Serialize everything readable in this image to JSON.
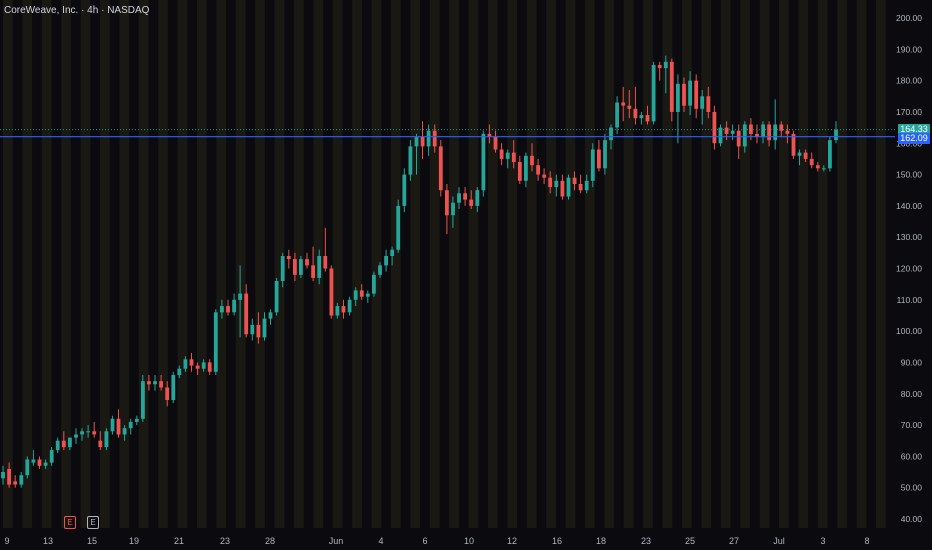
{
  "header": {
    "title": "CoreWeave, Inc. · 4h · NASDAQ"
  },
  "colors": {
    "up": "#26a69a",
    "down": "#ef5350",
    "line_blue": "#2962ff",
    "bg": "#0b0b0f",
    "session_band": "#1c1a14",
    "text": "#b2b5be"
  },
  "price_labels": {
    "current": "164.33",
    "level": "162.09"
  },
  "events": [
    {
      "label": "E",
      "color": "#ef5350"
    },
    {
      "label": "E",
      "color": "#b2b5be"
    }
  ],
  "chart_data": {
    "type": "candlestick",
    "timeframe": "4h",
    "ylim": [
      38,
      202
    ],
    "y_ticks": [
      "200.00",
      "190.00",
      "180.00",
      "170.00",
      "160.00",
      "150.00",
      "140.00",
      "130.00",
      "120.00",
      "110.00",
      "100.00",
      "90.00",
      "80.00",
      "70.00",
      "60.00",
      "50.00",
      "40.00"
    ],
    "x_ticks": [
      "9",
      "13",
      "15",
      "19",
      "21",
      "23",
      "28",
      "Jun",
      "4",
      "6",
      "10",
      "12",
      "16",
      "18",
      "23",
      "25",
      "27",
      "Jul",
      "3",
      "8"
    ],
    "horizontal_line": 162.09,
    "last_price": 164.33,
    "ohlc": [
      [
        53,
        57,
        51,
        55
      ],
      [
        56,
        58,
        50,
        51
      ],
      [
        52,
        54,
        50,
        51
      ],
      [
        51,
        55,
        50,
        54
      ],
      [
        54,
        60,
        53,
        59
      ],
      [
        58,
        62,
        57,
        59
      ],
      [
        59,
        60,
        56,
        57
      ],
      [
        57,
        59,
        56,
        58
      ],
      [
        58,
        63,
        57,
        62
      ],
      [
        62,
        66,
        61,
        65
      ],
      [
        65,
        68,
        62,
        63
      ],
      [
        63,
        66,
        62,
        66
      ],
      [
        66,
        69,
        64,
        67
      ],
      [
        67,
        69,
        65,
        68
      ],
      [
        68,
        70,
        66,
        68
      ],
      [
        68,
        71,
        66,
        67
      ],
      [
        65,
        68,
        62,
        63
      ],
      [
        63,
        69,
        62,
        68
      ],
      [
        68,
        73,
        67,
        72
      ],
      [
        72,
        75,
        66,
        67
      ],
      [
        67,
        70,
        65,
        69
      ],
      [
        69,
        72,
        67,
        71
      ],
      [
        71,
        73,
        70,
        72
      ],
      [
        72,
        86,
        71,
        84
      ],
      [
        84,
        86,
        81,
        83
      ],
      [
        83,
        86,
        81,
        84
      ],
      [
        84,
        86,
        81,
        82
      ],
      [
        82,
        84,
        76,
        78
      ],
      [
        78,
        87,
        77,
        86
      ],
      [
        86,
        89,
        85,
        88
      ],
      [
        88,
        92,
        87,
        91
      ],
      [
        91,
        93,
        87,
        89
      ],
      [
        89,
        90,
        86,
        88
      ],
      [
        88,
        91,
        87,
        90
      ],
      [
        90,
        91,
        86,
        87
      ],
      [
        87,
        107,
        86,
        106
      ],
      [
        106,
        110,
        104,
        108
      ],
      [
        108,
        110,
        105,
        106
      ],
      [
        106,
        112,
        105,
        110
      ],
      [
        110,
        121,
        98,
        112
      ],
      [
        112,
        115,
        98,
        99
      ],
      [
        99,
        104,
        97,
        102
      ],
      [
        102,
        106,
        96,
        98
      ],
      [
        98,
        106,
        97,
        104
      ],
      [
        104,
        107,
        102,
        106
      ],
      [
        106,
        117,
        105,
        116
      ],
      [
        116,
        125,
        114,
        124
      ],
      [
        124,
        126,
        120,
        123
      ],
      [
        123,
        125,
        116,
        118
      ],
      [
        118,
        124,
        117,
        123
      ],
      [
        123,
        125,
        120,
        121
      ],
      [
        121,
        127,
        116,
        117
      ],
      [
        117,
        126,
        115,
        124
      ],
      [
        124,
        133,
        119,
        120
      ],
      [
        120,
        121,
        104,
        105
      ],
      [
        105,
        109,
        104,
        108
      ],
      [
        108,
        110,
        104,
        106
      ],
      [
        106,
        111,
        105,
        110
      ],
      [
        110,
        114,
        108,
        113
      ],
      [
        113,
        115,
        110,
        111
      ],
      [
        111,
        113,
        109,
        112
      ],
      [
        112,
        119,
        111,
        118
      ],
      [
        118,
        122,
        117,
        121
      ],
      [
        121,
        126,
        119,
        124
      ],
      [
        124,
        127,
        121,
        126
      ],
      [
        126,
        142,
        125,
        140
      ],
      [
        140,
        152,
        138,
        150
      ],
      [
        150,
        161,
        148,
        159
      ],
      [
        159,
        163,
        150,
        162
      ],
      [
        162,
        167,
        155,
        159
      ],
      [
        159,
        166,
        156,
        164
      ],
      [
        164,
        166,
        157,
        159
      ],
      [
        159,
        161,
        143,
        145
      ],
      [
        145,
        147,
        131,
        137
      ],
      [
        137,
        143,
        133,
        141
      ],
      [
        141,
        146,
        139,
        144
      ],
      [
        144,
        146,
        140,
        142
      ],
      [
        142,
        145,
        139,
        140
      ],
      [
        140,
        146,
        138,
        145
      ],
      [
        145,
        164,
        143,
        163
      ],
      [
        163,
        166,
        160,
        162
      ],
      [
        162,
        164,
        157,
        158
      ],
      [
        158,
        160,
        153,
        155
      ],
      [
        155,
        158,
        152,
        157
      ],
      [
        157,
        161,
        152,
        154
      ],
      [
        154,
        156,
        147,
        148
      ],
      [
        148,
        157,
        146,
        156
      ],
      [
        156,
        160,
        151,
        153
      ],
      [
        153,
        155,
        148,
        150
      ],
      [
        150,
        152,
        147,
        149
      ],
      [
        149,
        151,
        144,
        146
      ],
      [
        146,
        150,
        143,
        148
      ],
      [
        148,
        150,
        142,
        143
      ],
      [
        143,
        150,
        142,
        149
      ],
      [
        149,
        151,
        145,
        147
      ],
      [
        147,
        150,
        144,
        145
      ],
      [
        145,
        150,
        144,
        148
      ],
      [
        148,
        160,
        146,
        158
      ],
      [
        158,
        161,
        151,
        152
      ],
      [
        152,
        163,
        150,
        161
      ],
      [
        161,
        166,
        158,
        165
      ],
      [
        165,
        175,
        163,
        173
      ],
      [
        173,
        178,
        167,
        172
      ],
      [
        172,
        177,
        168,
        171
      ],
      [
        171,
        178,
        166,
        168
      ],
      [
        168,
        170,
        166,
        169
      ],
      [
        169,
        172,
        166,
        167
      ],
      [
        167,
        186,
        166,
        185
      ],
      [
        185,
        186,
        180,
        184
      ],
      [
        184,
        188,
        176,
        186
      ],
      [
        186,
        187,
        167,
        170
      ],
      [
        170,
        182,
        160,
        179
      ],
      [
        179,
        181,
        170,
        172
      ],
      [
        172,
        183,
        169,
        180
      ],
      [
        180,
        182,
        168,
        171
      ],
      [
        171,
        177,
        166,
        175
      ],
      [
        175,
        178,
        168,
        170
      ],
      [
        170,
        172,
        158,
        160
      ],
      [
        160,
        166,
        159,
        165
      ],
      [
        165,
        167,
        161,
        163
      ],
      [
        163,
        166,
        161,
        164
      ],
      [
        164,
        166,
        155,
        159
      ],
      [
        159,
        167,
        157,
        166
      ],
      [
        166,
        168,
        161,
        163
      ],
      [
        163,
        166,
        160,
        162
      ],
      [
        162,
        167,
        160,
        166
      ],
      [
        166,
        167,
        159,
        161
      ],
      [
        161,
        174,
        158,
        166
      ],
      [
        166,
        167,
        162,
        164
      ],
      [
        164,
        166,
        160,
        163
      ],
      [
        163,
        164,
        155,
        156
      ],
      [
        156,
        158,
        153,
        157
      ],
      [
        157,
        158,
        154,
        155
      ],
      [
        155,
        157,
        152,
        153
      ],
      [
        153,
        154,
        151,
        152
      ],
      [
        152,
        153,
        151,
        152
      ],
      [
        152,
        162,
        151,
        161
      ],
      [
        161,
        167,
        160,
        164.33
      ]
    ]
  }
}
